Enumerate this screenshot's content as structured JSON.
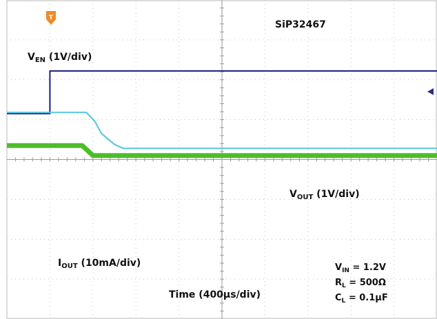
{
  "chart_data": {
    "type": "line",
    "title": "SiP32467",
    "xlabel": "Time (400µs/div)",
    "x_divisions": 10,
    "y_divisions": 8,
    "grid": true,
    "series": [
      {
        "name": "V_EN (1V/div)",
        "label_main": "V",
        "label_sub": "EN",
        "label_rest": " (1V/div)",
        "color": "#2a2d8c",
        "x": [
          0,
          1.0,
          1.0,
          10
        ],
        "y": [
          1.15,
          1.15,
          2.22,
          2.22
        ]
      },
      {
        "name": "V_OUT (1V/div)",
        "label_main": "V",
        "label_sub": "OUT",
        "label_rest": " (1V/div)",
        "color": "#5bc8e0",
        "x": [
          0,
          1.85,
          2.05,
          2.2,
          2.5,
          2.7,
          10
        ],
        "y": [
          1.18,
          1.18,
          0.95,
          0.65,
          0.38,
          0.28,
          0.28
        ]
      },
      {
        "name": "I_OUT (10mA/div)",
        "label_main": "I",
        "label_sub": "OUT",
        "label_rest": " (10mA/div)",
        "color": "#4dbd2a",
        "x": [
          0,
          1.75,
          2.0,
          10
        ],
        "y": [
          0.35,
          0.35,
          0.1,
          0.1
        ]
      }
    ],
    "conditions": [
      {
        "main": "V",
        "sub": "IN",
        "rest": " = 1.2V"
      },
      {
        "main": "R",
        "sub": "L",
        "rest": " = 500Ω"
      },
      {
        "main": "C",
        "sub": "L",
        "rest": " = 0.1µF"
      }
    ],
    "markers": {
      "trigger": "trigger-position-marker",
      "level": "trigger-level-arrow"
    }
  }
}
